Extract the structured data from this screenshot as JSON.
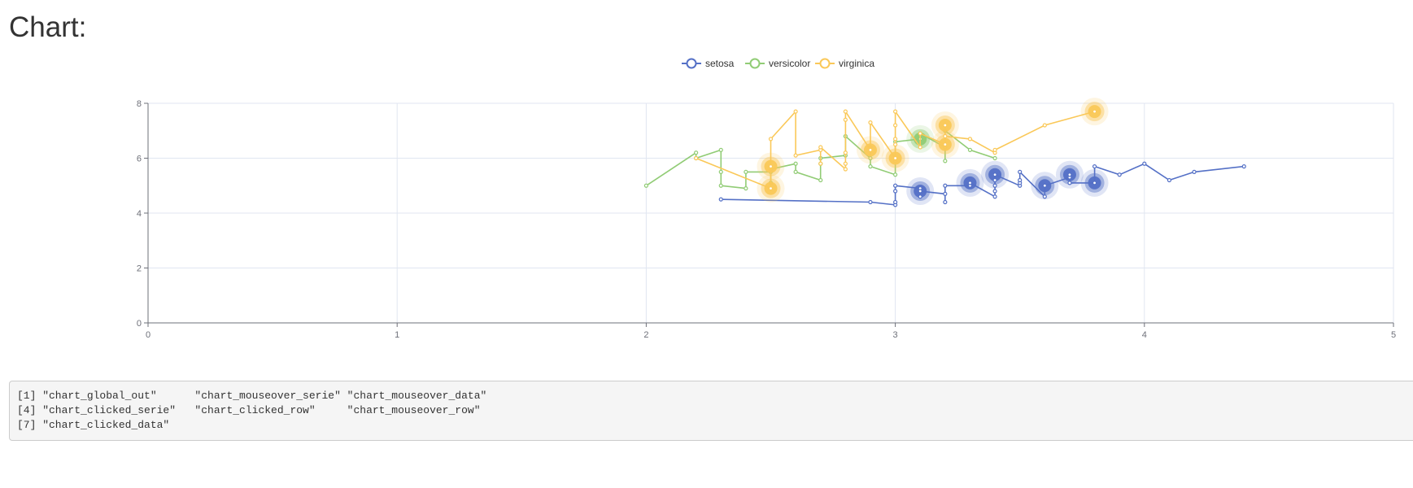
{
  "page": {
    "title": "Chart:"
  },
  "console": {
    "lines": [
      "[1] \"chart_global_out\"      \"chart_mouseover_serie\" \"chart_mouseover_data\"",
      "[4] \"chart_clicked_serie\"   \"chart_clicked_row\"     \"chart_mouseover_row\"",
      "[7] \"chart_clicked_data\""
    ]
  },
  "chart_data": {
    "type": "line",
    "title": "",
    "xlabel": "",
    "ylabel": "",
    "xlim": [
      0,
      5
    ],
    "ylim": [
      0,
      8
    ],
    "xticks": [
      "0",
      "1",
      "2",
      "3",
      "4",
      "5"
    ],
    "yticks": [
      "0",
      "2",
      "4",
      "6",
      "8"
    ],
    "grid": true,
    "legend_position": "top-center",
    "series": [
      {
        "name": "setosa",
        "color": "#5470c6",
        "points": [
          [
            2.3,
            4.5
          ],
          [
            2.9,
            4.4
          ],
          [
            3.0,
            4.3
          ],
          [
            3.0,
            4.4
          ],
          [
            3.0,
            4.8
          ],
          [
            3.0,
            5.0
          ],
          [
            3.1,
            4.9
          ],
          [
            3.1,
            4.6
          ],
          [
            3.1,
            4.8
          ],
          [
            3.2,
            4.7
          ],
          [
            3.2,
            4.4
          ],
          [
            3.2,
            5.0
          ],
          [
            3.3,
            5.0
          ],
          [
            3.3,
            5.1
          ],
          [
            3.4,
            4.6
          ],
          [
            3.4,
            4.8
          ],
          [
            3.4,
            5.0
          ],
          [
            3.4,
            5.2
          ],
          [
            3.4,
            5.4
          ],
          [
            3.5,
            5.0
          ],
          [
            3.5,
            5.1
          ],
          [
            3.5,
            5.2
          ],
          [
            3.5,
            5.5
          ],
          [
            3.6,
            4.6
          ],
          [
            3.6,
            5.0
          ],
          [
            3.7,
            5.3
          ],
          [
            3.7,
            5.4
          ],
          [
            3.7,
            5.1
          ],
          [
            3.8,
            5.1
          ],
          [
            3.8,
            5.7
          ],
          [
            3.9,
            5.4
          ],
          [
            4.0,
            5.8
          ],
          [
            4.1,
            5.2
          ],
          [
            4.2,
            5.5
          ],
          [
            4.4,
            5.7
          ]
        ],
        "highlighted": [
          [
            3.1,
            4.8
          ],
          [
            3.3,
            5.1
          ],
          [
            3.4,
            5.4
          ],
          [
            3.6,
            5.0
          ],
          [
            3.7,
            5.4
          ],
          [
            3.8,
            5.1
          ]
        ]
      },
      {
        "name": "versicolor",
        "color": "#91cc75",
        "points": [
          [
            2.0,
            5.0
          ],
          [
            2.2,
            6.2
          ],
          [
            2.2,
            6.0
          ],
          [
            2.3,
            6.3
          ],
          [
            2.3,
            5.5
          ],
          [
            2.3,
            5.0
          ],
          [
            2.4,
            4.9
          ],
          [
            2.4,
            5.5
          ],
          [
            2.5,
            5.5
          ],
          [
            2.5,
            5.1
          ],
          [
            2.5,
            5.6
          ],
          [
            2.6,
            5.8
          ],
          [
            2.6,
            5.5
          ],
          [
            2.7,
            5.2
          ],
          [
            2.7,
            5.8
          ],
          [
            2.7,
            6.0
          ],
          [
            2.8,
            6.1
          ],
          [
            2.8,
            6.8
          ],
          [
            2.9,
            6.0
          ],
          [
            2.9,
            6.4
          ],
          [
            2.9,
            5.7
          ],
          [
            3.0,
            5.4
          ],
          [
            3.0,
            5.9
          ],
          [
            3.0,
            6.6
          ],
          [
            3.1,
            6.7
          ],
          [
            3.1,
            6.9
          ],
          [
            3.2,
            6.4
          ],
          [
            3.2,
            5.9
          ],
          [
            3.2,
            7.0
          ],
          [
            3.3,
            6.3
          ],
          [
            3.4,
            6.0
          ]
        ],
        "highlighted": [
          [
            3.1,
            6.7
          ]
        ]
      },
      {
        "name": "virginica",
        "color": "#fac858",
        "points": [
          [
            2.2,
            6.0
          ],
          [
            2.5,
            4.9
          ],
          [
            2.5,
            5.7
          ],
          [
            2.5,
            6.7
          ],
          [
            2.6,
            7.7
          ],
          [
            2.6,
            6.1
          ],
          [
            2.7,
            6.3
          ],
          [
            2.7,
            5.8
          ],
          [
            2.7,
            6.4
          ],
          [
            2.8,
            5.6
          ],
          [
            2.8,
            5.8
          ],
          [
            2.8,
            6.2
          ],
          [
            2.8,
            7.4
          ],
          [
            2.8,
            7.7
          ],
          [
            2.9,
            6.3
          ],
          [
            2.9,
            7.3
          ],
          [
            3.0,
            6.0
          ],
          [
            3.0,
            6.5
          ],
          [
            3.0,
            6.7
          ],
          [
            3.0,
            7.2
          ],
          [
            3.0,
            7.7
          ],
          [
            3.1,
            6.4
          ],
          [
            3.1,
            6.9
          ],
          [
            3.2,
            6.5
          ],
          [
            3.2,
            7.2
          ],
          [
            3.2,
            6.8
          ],
          [
            3.3,
            6.7
          ],
          [
            3.4,
            6.2
          ],
          [
            3.4,
            6.3
          ],
          [
            3.6,
            7.2
          ],
          [
            3.8,
            7.7
          ]
        ],
        "highlighted": [
          [
            2.5,
            5.7
          ],
          [
            2.5,
            4.9
          ],
          [
            2.9,
            6.3
          ],
          [
            3.0,
            6.0
          ],
          [
            3.2,
            7.2
          ],
          [
            3.2,
            6.5
          ],
          [
            3.8,
            7.7
          ]
        ]
      }
    ]
  }
}
